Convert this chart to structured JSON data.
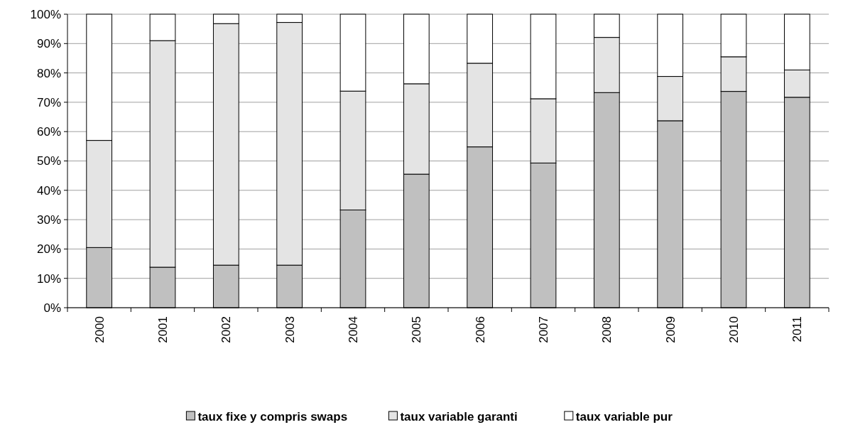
{
  "chart_data": {
    "type": "bar",
    "stacked": true,
    "categories": [
      "2000",
      "2001",
      "2002",
      "2003",
      "2004",
      "2005",
      "2006",
      "2007",
      "2008",
      "2009",
      "2010",
      "2011"
    ],
    "series": [
      {
        "name": "taux fixe y compris swaps",
        "color": "#c0c0c0",
        "values": [
          20.5,
          13.8,
          14.5,
          14.5,
          33.3,
          45.5,
          54.8,
          49.3,
          73.3,
          63.7,
          73.7,
          71.7
        ]
      },
      {
        "name": "taux variable garanti",
        "color": "#e4e4e4",
        "values": [
          36.5,
          77.2,
          82.3,
          82.7,
          40.5,
          30.8,
          28.5,
          21.9,
          18.8,
          15.1,
          11.8,
          9.3
        ]
      },
      {
        "name": "taux variable pur",
        "color": "#ffffff",
        "values": [
          43,
          9,
          3.2,
          2.8,
          26.2,
          23.7,
          16.7,
          28.8,
          7.9,
          21.2,
          14.5,
          19
        ]
      }
    ],
    "ylim": [
      0,
      100
    ],
    "yticks": [
      {
        "value": 0,
        "label": "0%"
      },
      {
        "value": 10,
        "label": "10%"
      },
      {
        "value": 20,
        "label": "20%"
      },
      {
        "value": 30,
        "label": "30%"
      },
      {
        "value": 40,
        "label": "40%"
      },
      {
        "value": 50,
        "label": "50%"
      },
      {
        "value": 60,
        "label": "60%"
      },
      {
        "value": 70,
        "label": "70%"
      },
      {
        "value": 80,
        "label": "80%"
      },
      {
        "value": 90,
        "label": "90%"
      },
      {
        "value": 100,
        "label": "100%"
      }
    ],
    "grid": "y",
    "legend": "bottom"
  }
}
